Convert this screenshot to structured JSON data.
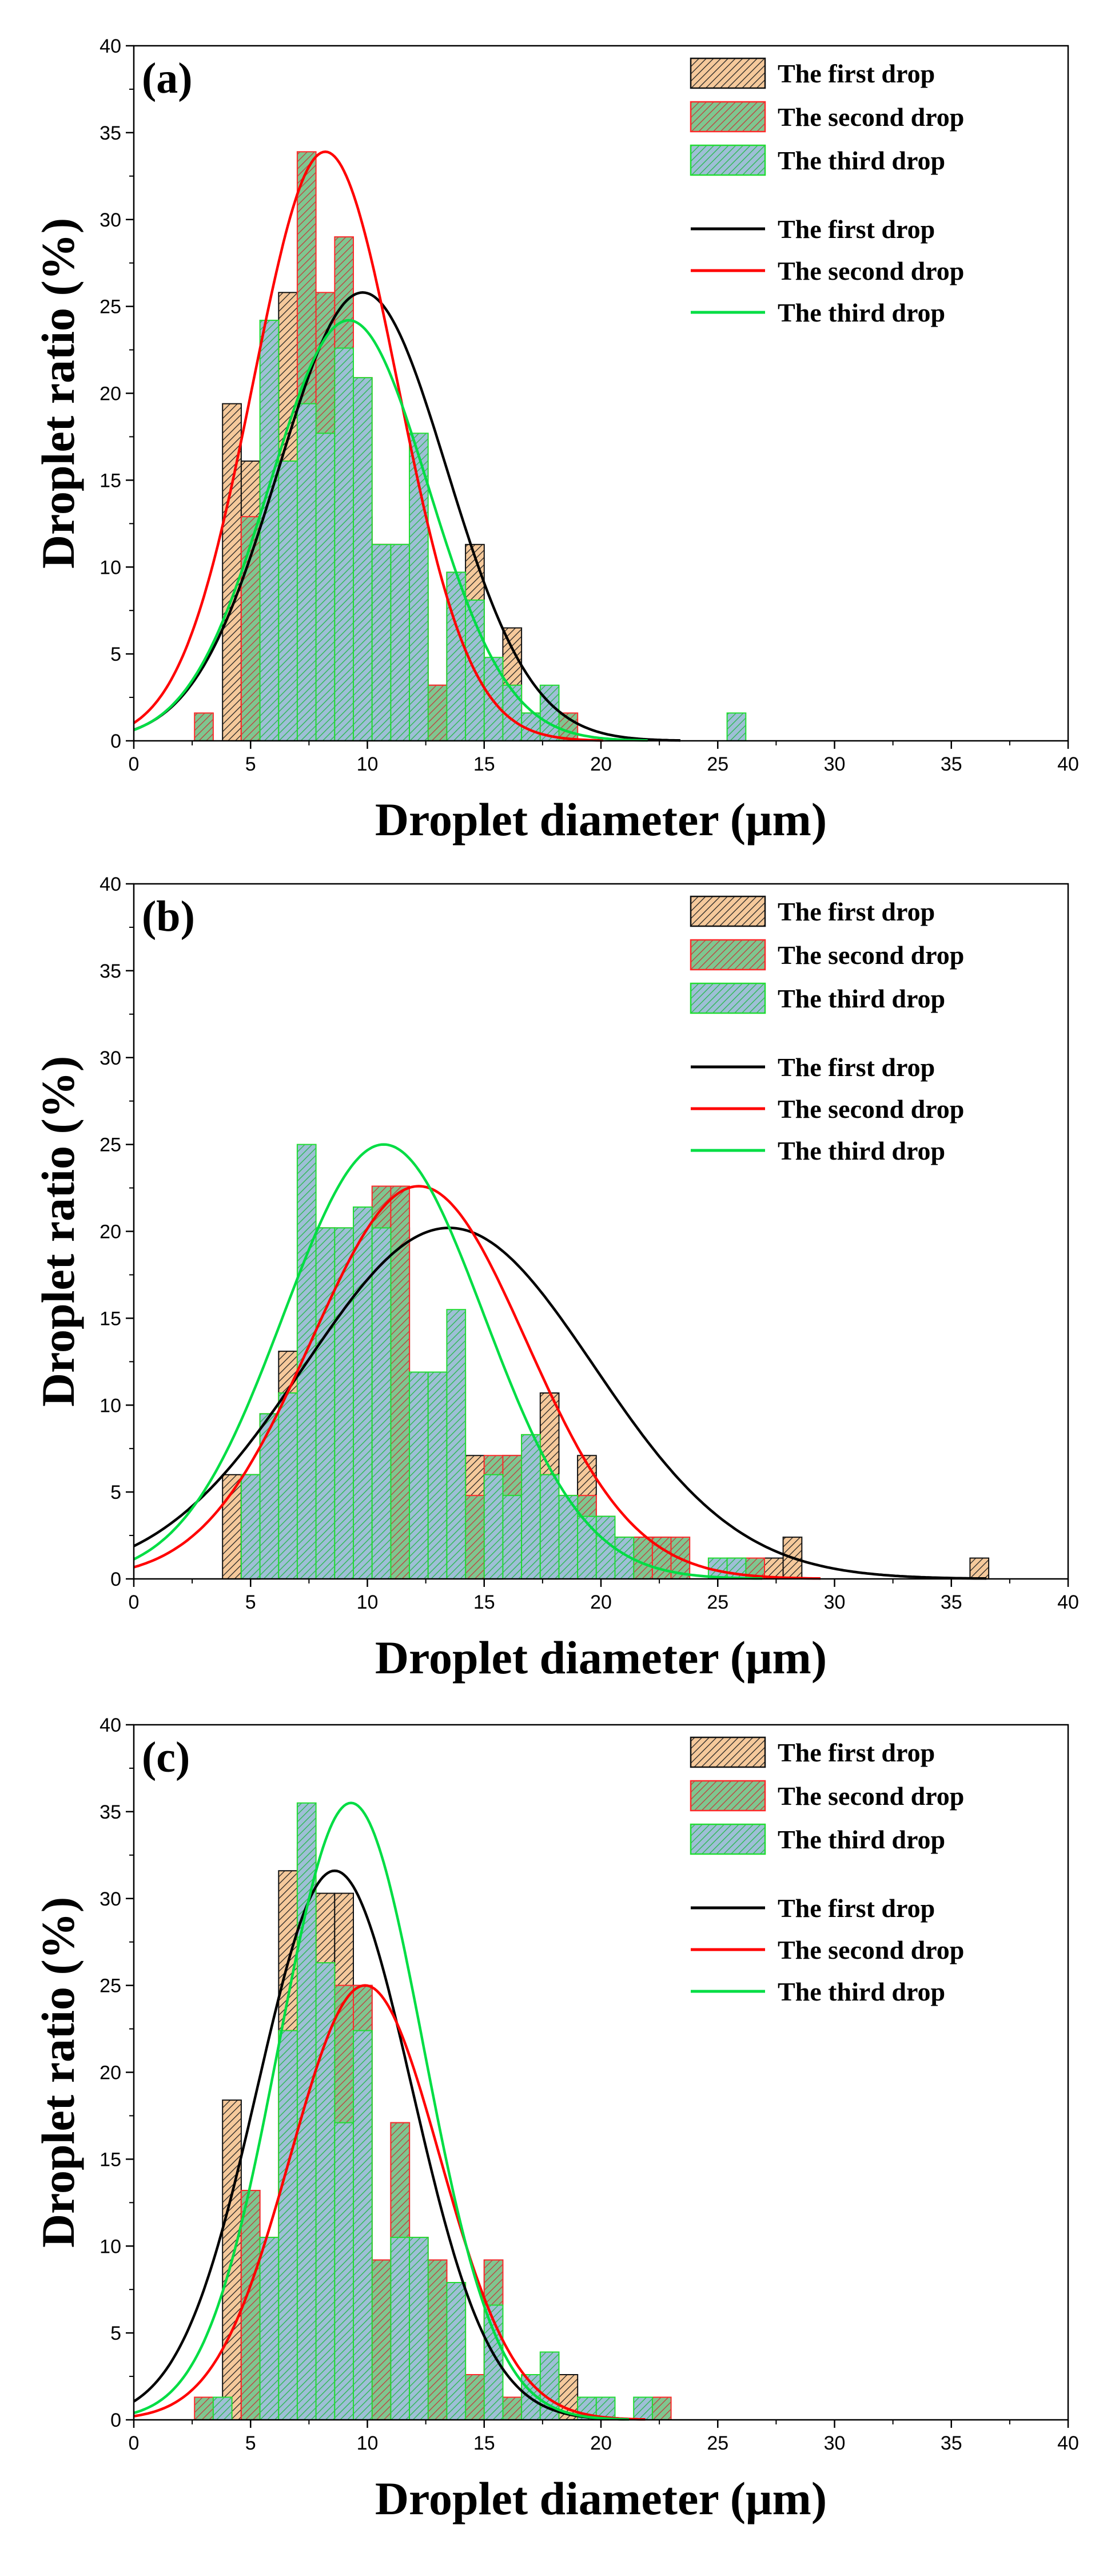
{
  "colors": {
    "first_line": "#000000",
    "second_line": "#ff0000",
    "third_line": "#00dd44",
    "first_fill": "#f5c99b",
    "second_fill": "#7fc68f",
    "third_fill": "#9ebfd6",
    "first_border": "#111111",
    "second_border": "#ff2a2a",
    "third_border": "#22dd33"
  },
  "chart_data": [
    {
      "type": "bar",
      "panel_label": "(a)",
      "xlabel": "Droplet diameter (μm)",
      "ylabel": "Droplet ratio (%)",
      "xlim": [
        0,
        40
      ],
      "ylim": [
        0,
        40
      ],
      "xticks": [
        0,
        5,
        10,
        15,
        20,
        25,
        30,
        35,
        40
      ],
      "yticks": [
        0,
        5,
        10,
        15,
        20,
        25,
        30,
        35,
        40
      ],
      "minor_ticks": true,
      "grid": false,
      "bin_width": 0.8,
      "legend_position": "top-right",
      "legend_hist": [
        "The first drop",
        "The second drop",
        "The third drop"
      ],
      "legend_lines": [
        "The first drop",
        "The second drop",
        "The third drop"
      ],
      "series": [
        {
          "name": "The first drop",
          "style": "hist",
          "x": [
            4.2,
            5.0,
            5.8,
            6.6,
            7.4,
            8.2,
            9.0,
            9.8,
            10.6,
            11.4,
            12.2,
            13.0,
            13.8,
            14.6,
            15.4,
            16.2
          ],
          "values": [
            19.4,
            16.1,
            16.1,
            25.8,
            16.1,
            16.1,
            22.6,
            12.9,
            11.3,
            11.3,
            9.7,
            3.2,
            9.7,
            11.3,
            3.2,
            6.5
          ]
        },
        {
          "name": "The second drop",
          "style": "hist",
          "x": [
            3.0,
            5.0,
            5.8,
            6.6,
            7.4,
            8.2,
            9.0,
            9.8,
            10.6,
            11.4,
            12.2,
            13.0,
            13.8,
            14.6,
            15.4,
            16.2,
            17.0,
            17.8,
            18.6
          ],
          "values": [
            1.6,
            12.9,
            11.3,
            16.1,
            33.9,
            25.8,
            29.0,
            20.9,
            11.3,
            9.7,
            8.1,
            3.2,
            4.8,
            3.2,
            1.6,
            3.2,
            1.6,
            1.6,
            1.6
          ]
        },
        {
          "name": "The third drop",
          "style": "hist",
          "x": [
            5.8,
            6.6,
            7.4,
            8.2,
            9.0,
            9.8,
            10.6,
            11.4,
            12.2,
            13.8,
            14.6,
            15.4,
            16.2,
            17.0,
            17.8,
            25.8
          ],
          "values": [
            24.2,
            16.1,
            19.4,
            17.7,
            22.6,
            20.9,
            11.3,
            11.3,
            17.7,
            9.7,
            8.1,
            4.8,
            3.2,
            1.6,
            3.2,
            1.6
          ]
        },
        {
          "name": "The first drop",
          "style": "fit",
          "peak": 25.8,
          "mean": 9.8,
          "sd": 3.6
        },
        {
          "name": "The second drop",
          "style": "fit",
          "peak": 33.9,
          "mean": 8.2,
          "sd": 3.1
        },
        {
          "name": "The third drop",
          "style": "fit",
          "peak": 24.2,
          "mean": 9.2,
          "sd": 3.4
        }
      ]
    },
    {
      "type": "bar",
      "panel_label": "(b)",
      "xlabel": "Droplet diameter (μm)",
      "ylabel": "Droplet ratio (%)",
      "xlim": [
        0,
        40
      ],
      "ylim": [
        0,
        40
      ],
      "xticks": [
        0,
        5,
        10,
        15,
        20,
        25,
        30,
        35,
        40
      ],
      "yticks": [
        0,
        5,
        10,
        15,
        20,
        25,
        30,
        35,
        40
      ],
      "minor_ticks": true,
      "grid": false,
      "bin_width": 0.8,
      "legend_position": "top-right",
      "legend_hist": [
        "The first drop",
        "The second drop",
        "The third drop"
      ],
      "legend_lines": [
        "The first drop",
        "The second drop",
        "The third drop"
      ],
      "series": [
        {
          "name": "The first drop",
          "style": "hist",
          "x": [
            4.2,
            5.0,
            5.8,
            6.6,
            7.4,
            8.2,
            9.0,
            9.8,
            10.6,
            11.4,
            12.2,
            13.0,
            13.8,
            14.6,
            15.4,
            16.2,
            17.0,
            17.8,
            18.6,
            19.4,
            20.2,
            21.0,
            21.8,
            22.6,
            27.4,
            28.2,
            36.2
          ],
          "values": [
            6.0,
            6.0,
            9.5,
            13.1,
            10.7,
            20.2,
            20.2,
            11.9,
            11.9,
            20.2,
            11.9,
            11.9,
            4.8,
            7.1,
            6.0,
            7.1,
            3.6,
            10.7,
            3.6,
            7.1,
            3.6,
            2.4,
            2.4,
            2.4,
            1.2,
            2.4,
            1.2
          ]
        },
        {
          "name": "The second drop",
          "style": "hist",
          "x": [
            5.8,
            6.6,
            7.4,
            8.2,
            9.0,
            9.8,
            10.6,
            11.4,
            12.2,
            13.0,
            13.8,
            14.6,
            15.4,
            16.2,
            17.0,
            17.8,
            18.6,
            19.4,
            20.2,
            21.0,
            21.8,
            22.6,
            23.4,
            25.8,
            26.6
          ],
          "values": [
            9.5,
            10.7,
            16.7,
            20.2,
            17.9,
            14.3,
            22.6,
            22.6,
            11.9,
            11.9,
            11.9,
            4.8,
            7.1,
            7.1,
            8.3,
            6.0,
            4.8,
            4.8,
            2.4,
            2.4,
            2.4,
            2.4,
            2.4,
            1.2,
            1.2
          ]
        },
        {
          "name": "The third drop",
          "style": "hist",
          "x": [
            5.0,
            5.8,
            6.6,
            7.4,
            8.2,
            9.0,
            9.8,
            10.6,
            12.2,
            13.0,
            13.8,
            15.4,
            16.2,
            17.0,
            17.8,
            18.6,
            19.4,
            20.2,
            21.0,
            25.0,
            25.8
          ],
          "values": [
            6.0,
            9.5,
            10.7,
            25.0,
            20.2,
            20.2,
            21.4,
            20.2,
            11.9,
            11.9,
            15.5,
            6.0,
            4.8,
            8.3,
            6.0,
            4.8,
            3.6,
            3.6,
            2.4,
            1.2,
            1.2
          ]
        },
        {
          "name": "The first drop",
          "style": "fit",
          "peak": 20.2,
          "mean": 13.5,
          "sd": 6.2
        },
        {
          "name": "The second drop",
          "style": "fit",
          "peak": 22.6,
          "mean": 12.2,
          "sd": 4.6
        },
        {
          "name": "The third drop",
          "style": "fit",
          "peak": 25.0,
          "mean": 10.7,
          "sd": 4.3
        }
      ]
    },
    {
      "type": "bar",
      "panel_label": "(c)",
      "xlabel": "Droplet diameter (μm)",
      "ylabel": "Droplet ratio (%)",
      "xlim": [
        0,
        40
      ],
      "ylim": [
        0,
        40
      ],
      "xticks": [
        0,
        5,
        10,
        15,
        20,
        25,
        30,
        35,
        40
      ],
      "yticks": [
        0,
        5,
        10,
        15,
        20,
        25,
        30,
        35,
        40
      ],
      "minor_ticks": true,
      "grid": false,
      "bin_width": 0.8,
      "legend_position": "top-right",
      "legend_hist": [
        "The first drop",
        "The second drop",
        "The third drop"
      ],
      "legend_lines": [
        "The first drop",
        "The second drop",
        "The third drop"
      ],
      "series": [
        {
          "name": "The first drop",
          "style": "hist",
          "x": [
            4.2,
            5.0,
            5.8,
            6.6,
            7.4,
            8.2,
            9.0,
            9.8,
            10.6,
            11.4,
            12.2,
            13.0,
            13.8,
            14.6,
            15.4,
            16.2,
            17.0,
            17.8,
            18.6,
            19.4,
            20.2
          ],
          "values": [
            18.4,
            13.2,
            10.5,
            31.6,
            22.4,
            30.3,
            30.3,
            25.0,
            9.2,
            17.1,
            2.6,
            9.2,
            2.6,
            2.6,
            9.2,
            1.3,
            1.3,
            2.6,
            2.6,
            1.3,
            1.3
          ]
        },
        {
          "name": "The second drop",
          "style": "hist",
          "x": [
            3.0,
            5.0,
            5.8,
            6.6,
            7.4,
            8.2,
            9.0,
            9.8,
            10.6,
            11.4,
            12.2,
            13.0,
            13.8,
            14.6,
            15.4,
            16.2,
            17.0,
            17.8,
            22.6
          ],
          "values": [
            1.3,
            13.2,
            10.5,
            22.4,
            32.9,
            25.0,
            25.0,
            25.0,
            9.2,
            17.1,
            10.5,
            9.2,
            7.9,
            2.6,
            9.2,
            1.3,
            2.6,
            2.6,
            1.3
          ]
        },
        {
          "name": "The third drop",
          "style": "hist",
          "x": [
            3.8,
            5.8,
            6.6,
            7.4,
            8.2,
            9.0,
            9.8,
            11.4,
            12.2,
            13.8,
            15.4,
            17.0,
            17.8,
            19.4,
            20.2,
            21.8
          ],
          "values": [
            1.3,
            10.5,
            22.4,
            35.5,
            26.3,
            17.1,
            22.4,
            10.5,
            10.5,
            7.9,
            6.6,
            2.6,
            3.9,
            1.3,
            1.3,
            1.3
          ]
        },
        {
          "name": "The first drop",
          "style": "fit",
          "peak": 31.6,
          "mean": 8.6,
          "sd": 3.3
        },
        {
          "name": "The second drop",
          "style": "fit",
          "peak": 25.0,
          "mean": 9.9,
          "sd": 3.2
        },
        {
          "name": "The third drop",
          "style": "fit",
          "peak": 35.5,
          "mean": 9.3,
          "sd": 3.1
        }
      ]
    }
  ]
}
